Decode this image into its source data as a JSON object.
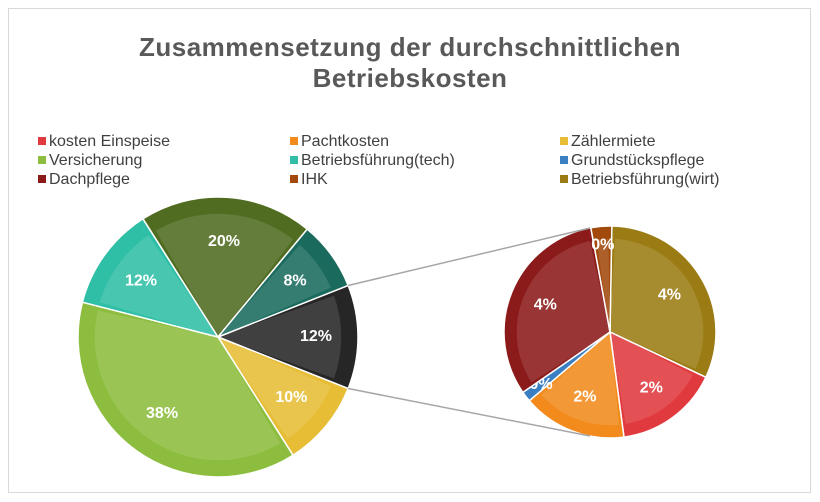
{
  "chart_data": {
    "type": "pie-of-pie",
    "title": "Zusammensetzung der durchschnittlichen Betriebskosten",
    "categories": [
      "kosten Einspeise",
      "Pachtkosten",
      "Zählermiete",
      "Versicherung",
      "Betriebsführung(tech)",
      "Grundstückspflege",
      "Dachpflege",
      "IHK",
      "Betriebsführung(wirt)",
      null,
      null
    ],
    "values": [
      2,
      2,
      10,
      38,
      12,
      0.2,
      4,
      0.4,
      4,
      20,
      8
    ],
    "value_labels": [
      "2%",
      "2%",
      "10%",
      "38%",
      "12%",
      "0%",
      "4%",
      "0%",
      "4%",
      "20%",
      "8%"
    ],
    "colors": [
      "#e0393e",
      "#f28a1c",
      "#e6bd35",
      "#8cbd3e",
      "#2fbfa6",
      "#3a7fc1",
      "#8b1a1a",
      "#a2490c",
      "#9b7b13",
      "#4f6c20",
      "#1a6b5e"
    ],
    "in_second_plot": [
      true,
      true,
      false,
      false,
      false,
      true,
      true,
      true,
      true,
      false,
      false
    ],
    "other_value": 12,
    "other_label": "12%",
    "other_color": "#262626",
    "legend": "top"
  }
}
